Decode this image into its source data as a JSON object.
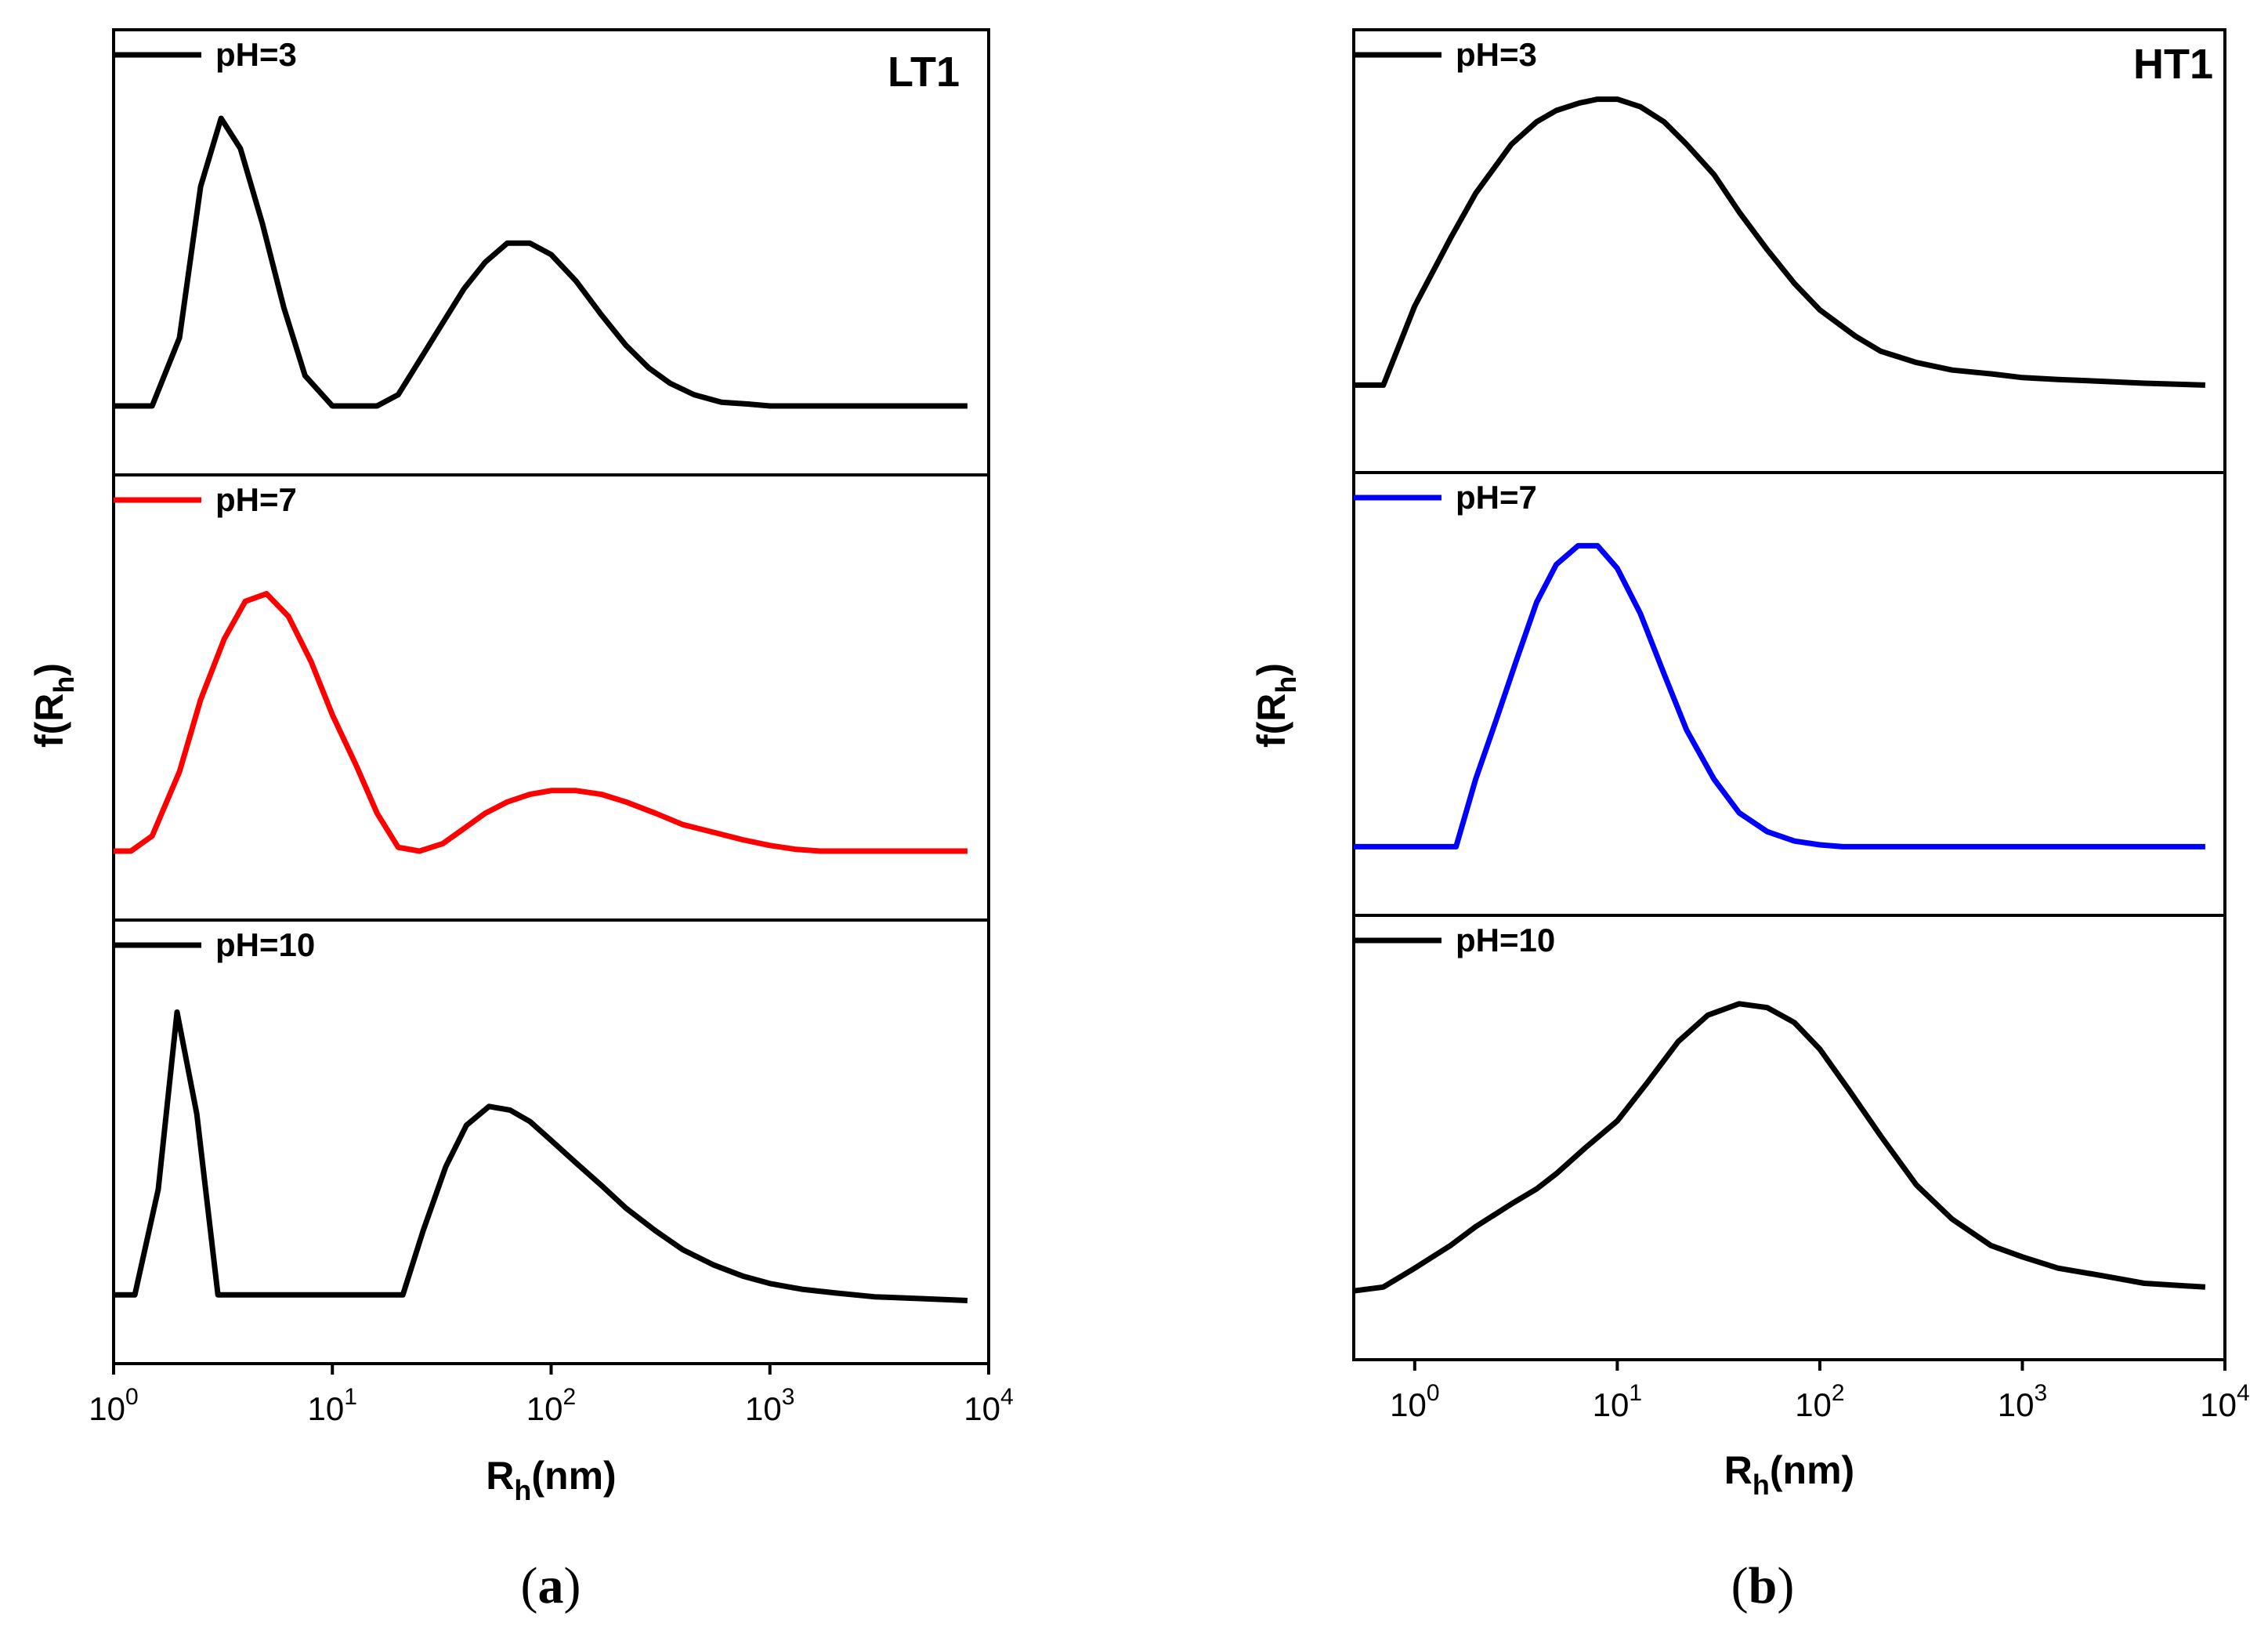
{
  "chart_data": [
    {
      "type": "line",
      "panel": "a",
      "caption_letter": "a",
      "tag": "LT1",
      "xscale": "log",
      "xlim": [
        1,
        10000
      ],
      "xticks": [
        {
          "value": 1,
          "base": "10",
          "exp": "0"
        },
        {
          "value": 10,
          "base": "10",
          "exp": "1"
        },
        {
          "value": 100,
          "base": "10",
          "exp": "2"
        },
        {
          "value": 1000,
          "base": "10",
          "exp": "3"
        },
        {
          "value": 10000,
          "base": "10",
          "exp": "4"
        }
      ],
      "xlabel": {
        "main": "R",
        "sub": "h",
        "tail": "(nm)"
      },
      "ylabel": {
        "main": "f(R",
        "sub": "h",
        "tail": ")"
      },
      "ylim": [
        0,
        1
      ],
      "series": [
        {
          "name": "pH=3",
          "color": "#000000",
          "x": [
            1,
            1.5,
            2,
            2.5,
            3.1,
            3.8,
            4.8,
            6,
            7.5,
            10,
            16,
            20,
            25,
            32,
            40,
            50,
            63,
            80,
            100,
            130,
            170,
            220,
            280,
            350,
            450,
            600,
            800,
            1000,
            1300,
            8000
          ],
          "y": [
            0.12,
            0.12,
            0.3,
            0.7,
            0.88,
            0.8,
            0.6,
            0.38,
            0.2,
            0.12,
            0.12,
            0.15,
            0.24,
            0.34,
            0.43,
            0.5,
            0.55,
            0.55,
            0.52,
            0.45,
            0.36,
            0.28,
            0.22,
            0.18,
            0.15,
            0.13,
            0.125,
            0.12,
            0.12,
            0.12
          ]
        },
        {
          "name": "pH=7",
          "color": "#ff0000",
          "x": [
            1,
            1.2,
            1.5,
            2,
            2.5,
            3.2,
            4,
            5,
            6.3,
            8,
            10,
            13,
            16,
            20,
            25,
            32,
            40,
            50,
            63,
            80,
            100,
            130,
            170,
            220,
            300,
            400,
            550,
            750,
            1000,
            1300,
            1700,
            8000
          ],
          "y": [
            0.12,
            0.12,
            0.16,
            0.33,
            0.52,
            0.68,
            0.78,
            0.8,
            0.74,
            0.62,
            0.48,
            0.34,
            0.22,
            0.13,
            0.12,
            0.14,
            0.18,
            0.22,
            0.25,
            0.27,
            0.28,
            0.28,
            0.27,
            0.25,
            0.22,
            0.19,
            0.17,
            0.15,
            0.135,
            0.125,
            0.12,
            0.12
          ]
        },
        {
          "name": "pH=10",
          "color": "#000000",
          "x": [
            1,
            1.25,
            1.6,
            1.95,
            2.4,
            3,
            4,
            5,
            6.3,
            8,
            10,
            13,
            16,
            21,
            26,
            33,
            41,
            52,
            65,
            80,
            100,
            130,
            170,
            220,
            300,
            400,
            550,
            750,
            1000,
            1400,
            2000,
            3000,
            5000,
            8000
          ],
          "y": [
            0.12,
            0.12,
            0.4,
            0.87,
            0.6,
            0.12,
            0.12,
            0.12,
            0.12,
            0.12,
            0.12,
            0.12,
            0.12,
            0.12,
            0.29,
            0.46,
            0.57,
            0.62,
            0.61,
            0.58,
            0.53,
            0.47,
            0.41,
            0.35,
            0.29,
            0.24,
            0.2,
            0.17,
            0.15,
            0.135,
            0.125,
            0.115,
            0.11,
            0.105
          ]
        }
      ]
    },
    {
      "type": "line",
      "panel": "b",
      "caption_letter": "b",
      "tag": "HT1",
      "xscale": "log",
      "xlim": [
        0.5,
        10000
      ],
      "xticks": [
        {
          "value": 1,
          "base": "10",
          "exp": "0"
        },
        {
          "value": 10,
          "base": "10",
          "exp": "1"
        },
        {
          "value": 100,
          "base": "10",
          "exp": "2"
        },
        {
          "value": 1000,
          "base": "10",
          "exp": "3"
        },
        {
          "value": 10000,
          "base": "10",
          "exp": "4"
        }
      ],
      "xlabel": {
        "main": "R",
        "sub": "h",
        "tail": "(nm)"
      },
      "ylabel": {
        "main": "f(R",
        "sub": "h",
        "tail": ")"
      },
      "ylim": [
        0,
        1
      ],
      "series": [
        {
          "name": "pH=3",
          "color": "#000000",
          "x": [
            0.5,
            0.7,
            1,
            1.5,
            2,
            3,
            4,
            5,
            6.5,
            8,
            10,
            13,
            17,
            22,
            30,
            40,
            55,
            75,
            100,
            150,
            200,
            300,
            450,
            700,
            1000,
            1500,
            2500,
            4000,
            8000
          ],
          "y": [
            0.17,
            0.17,
            0.38,
            0.56,
            0.68,
            0.81,
            0.87,
            0.9,
            0.92,
            0.93,
            0.93,
            0.91,
            0.87,
            0.81,
            0.73,
            0.63,
            0.53,
            0.44,
            0.37,
            0.3,
            0.26,
            0.23,
            0.21,
            0.2,
            0.19,
            0.185,
            0.18,
            0.175,
            0.17
          ]
        },
        {
          "name": "pH=7",
          "color": "#0000ff",
          "x": [
            0.5,
            1,
            1.6,
            2,
            2.5,
            3.2,
            4,
            5,
            6.4,
            8,
            10,
            13,
            17,
            22,
            30,
            40,
            55,
            75,
            100,
            130,
            170,
            300,
            1000,
            8000
          ],
          "y": [
            0.12,
            0.12,
            0.12,
            0.3,
            0.45,
            0.62,
            0.77,
            0.87,
            0.92,
            0.92,
            0.86,
            0.74,
            0.58,
            0.43,
            0.3,
            0.21,
            0.16,
            0.135,
            0.125,
            0.12,
            0.12,
            0.12,
            0.12,
            0.12
          ]
        },
        {
          "name": "pH=10",
          "color": "#000000",
          "x": [
            0.5,
            0.7,
            1,
            1.5,
            2,
            3,
            4,
            5,
            7,
            10,
            14,
            20,
            28,
            40,
            55,
            75,
            100,
            140,
            200,
            300,
            450,
            700,
            1000,
            1500,
            2500,
            4000,
            8000
          ],
          "y": [
            0.12,
            0.13,
            0.18,
            0.24,
            0.29,
            0.35,
            0.39,
            0.43,
            0.5,
            0.57,
            0.67,
            0.78,
            0.85,
            0.88,
            0.87,
            0.83,
            0.76,
            0.65,
            0.53,
            0.4,
            0.31,
            0.24,
            0.21,
            0.18,
            0.16,
            0.14,
            0.13
          ]
        }
      ]
    }
  ]
}
